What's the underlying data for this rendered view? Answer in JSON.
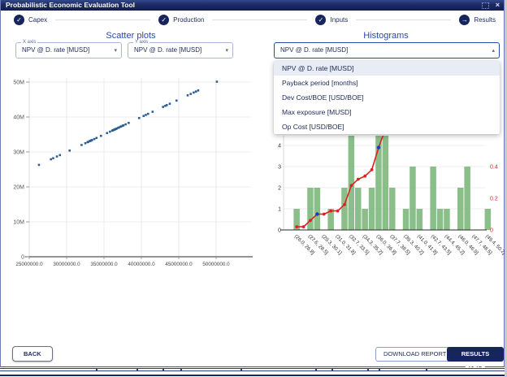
{
  "titlebar": {
    "title": "Probabilistic Economic Evaluation Tool",
    "close_glyph": "×"
  },
  "stepper": {
    "done_glyph": "✓",
    "current_glyph": "→",
    "steps": [
      {
        "label": "Capex",
        "state": "done"
      },
      {
        "label": "Production",
        "state": "done"
      },
      {
        "label": "Inputs",
        "state": "done"
      },
      {
        "label": "Results",
        "state": "current"
      }
    ]
  },
  "scatter_section": {
    "title": "Scatter plots",
    "x_select": {
      "label": "X axis",
      "value": "NPV @ D. rate [MUSD]"
    },
    "y_select": {
      "label": "Y axis",
      "value": "NPV @ D. rate [MUSD]"
    },
    "caret_down": "▾"
  },
  "histogram_section": {
    "title": "Histograms",
    "select_value": "NPV @ D. rate [MUSD]",
    "caret_up": "▴",
    "options": [
      "NPV @ D. rate [MUSD]",
      "Payback period [months]",
      "Dev Cost/BOE [USD/BOE]",
      "Max exposure [MUSD]",
      "Op Cost [USD/BOE]"
    ],
    "selected_index": 0
  },
  "footer": {
    "back_label": "BACK",
    "download_label": "DOWNLOAD REPORT",
    "results_label": "RESULTS TABLE"
  },
  "colors": {
    "accent": "#2b4aa5",
    "navy": "#16255c",
    "point_blue": "#2d5f94",
    "bar_green": "#7db87d",
    "line_red": "#e02020",
    "marker_blue": "#2038c8",
    "grid": "#e6e6e6",
    "tick_text": "#555555",
    "axis_dark": "#2a2a2a"
  },
  "chart_data": [
    {
      "type": "scatter",
      "x_variable": "NPV @ D. rate [MUSD]",
      "y_variable": "NPV @ D. rate [MUSD]",
      "x_tick_labels": [
        "25000000.0",
        "30000000.0",
        "35000000.0",
        "40000000.0",
        "45000000.0",
        "50000000.0"
      ],
      "y_tick_labels": [
        "0",
        "10M",
        "20M",
        "30M",
        "40M",
        "50M"
      ],
      "xlim_musd": [
        25,
        52
      ],
      "ylim_musd": [
        0,
        52
      ],
      "grid": true,
      "values_musd": [
        26.3,
        27.9,
        28.2,
        28.7,
        29.1,
        30.4,
        32.0,
        32.5,
        32.8,
        32.9,
        33.1,
        33.2,
        33.3,
        33.4,
        33.7,
        34.0,
        34.6,
        35.4,
        35.8,
        36.1,
        36.2,
        36.3,
        36.4,
        36.5,
        36.6,
        36.7,
        36.9,
        37.0,
        37.2,
        37.3,
        37.5,
        37.6,
        37.9,
        38.3,
        39.7,
        40.3,
        40.6,
        40.9,
        41.5,
        42.9,
        43.2,
        43.4,
        43.8,
        44.7,
        46.2,
        46.6,
        47.0,
        47.3,
        47.6,
        50.1
      ]
    },
    {
      "type": "bar",
      "variable": "NPV @ D. rate [MUSD]",
      "bin_start": 26.0,
      "bin_width": 0.84,
      "n_bins": 29,
      "counts": [
        1,
        0,
        2,
        2,
        0,
        1,
        0,
        2,
        6,
        2,
        1,
        2,
        7,
        6,
        2,
        0,
        1,
        3,
        1,
        0,
        3,
        1,
        1,
        0,
        2,
        3,
        0,
        0,
        1
      ],
      "total_samples": 50,
      "left_tick_labels": [
        "0",
        "1",
        "2",
        "3",
        "4"
      ],
      "right_tick_labels": [
        "0",
        "0.2",
        "0.4"
      ],
      "x_tick_labels": [
        "(26.0, 26.8]",
        "(27.6, 28.5]",
        "(29.3, 30.1]",
        "(31.0, 31.8]",
        "(32.7, 33.5]",
        "(34.3, 35.2]",
        "(36.0, 36.8]",
        "(37.7, 38.5]",
        "(39.3, 40.2]",
        "(41.0, 41.8]",
        "(42.7, 43.5]",
        "(44.4, 45.2]",
        "(46.0, 46.9]",
        "(47.7, 48.5]",
        "(49.4, 50.2]"
      ],
      "cumulative_line": true,
      "marker_bins": [
        4,
        13
      ],
      "legend_position": "none"
    }
  ]
}
